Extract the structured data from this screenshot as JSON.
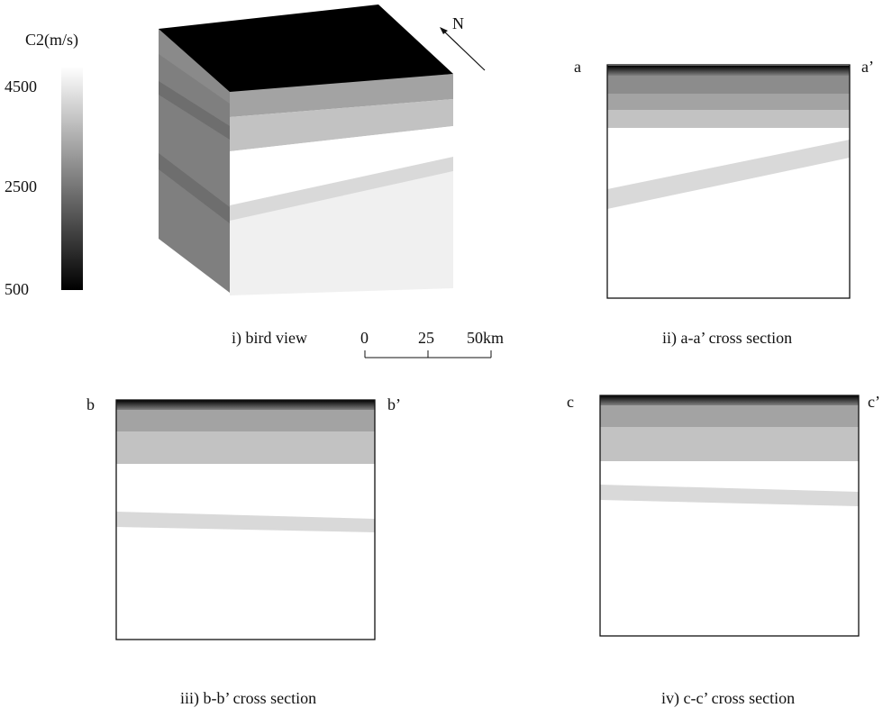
{
  "colorbar": {
    "title": "C2(m/s)",
    "ticks": [
      "4500",
      "2500",
      "500"
    ]
  },
  "north": "N",
  "scalebar": {
    "labels": [
      "0",
      "25",
      "50km"
    ]
  },
  "panels": {
    "bird_view": {
      "caption": "i) bird view"
    },
    "aa": {
      "left": "a",
      "right": "a’",
      "caption": "ii) a-a’  cross section"
    },
    "bb": {
      "left": "b",
      "right": "b’",
      "caption": "iii) b-b’ cross section"
    },
    "cc": {
      "left": "c",
      "right": "c’",
      "caption": "iv) c-c’  cross section"
    }
  },
  "colors": {
    "black": "#000000",
    "layer_dark": "#8c8c8c",
    "layer_mid": "#a3a3a3",
    "layer_light": "#c2c2c2",
    "white_layer": "#ffffff",
    "lens": "#d9d9d9",
    "side_face": "#7f7f7f",
    "side_dark": "#6e6e6e",
    "front_bottom": "#f0f0f0"
  }
}
